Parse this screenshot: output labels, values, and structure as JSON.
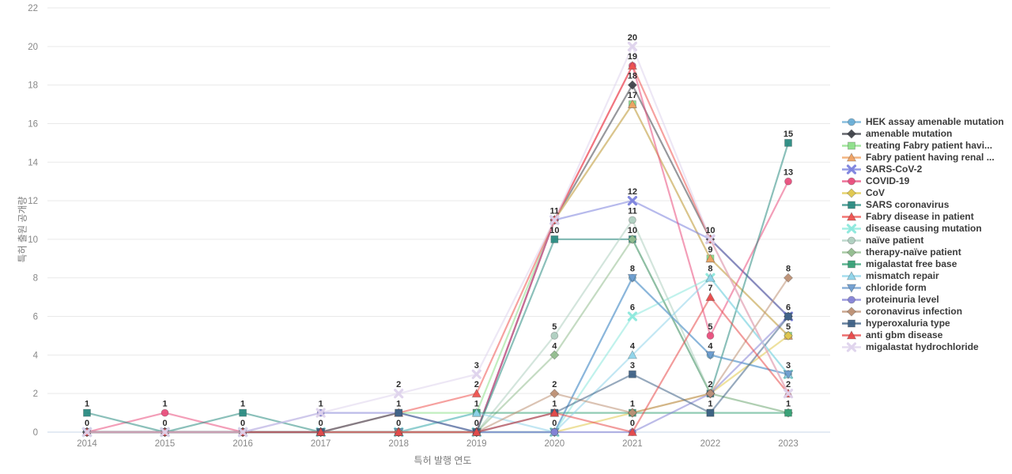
{
  "chart_data": {
    "type": "line",
    "title": "",
    "xlabel": "특허 발행 연도",
    "ylabel": "특허 출원 공개량",
    "x": [
      "2014",
      "2015",
      "2016",
      "2017",
      "2018",
      "2019",
      "2020",
      "2021",
      "2022",
      "2023"
    ],
    "ylim": [
      0,
      22
    ],
    "ytick_step": 2,
    "yticks": [
      0,
      2,
      4,
      6,
      8,
      10,
      12,
      14,
      16,
      18,
      20,
      22
    ],
    "grid": true,
    "legend_position": "right",
    "point_labels": true,
    "colors": {
      "grid": "#e9e9e9",
      "zero_line": "#c9d7e8",
      "tick_text": "#888888",
      "value_label": "#2b2b2b"
    },
    "series": [
      {
        "name": "HEK assay amenable mutation",
        "color": "#6aaed6",
        "marker": "circle",
        "values": [
          0,
          0,
          0,
          0,
          0,
          0,
          0,
          8,
          4,
          3
        ]
      },
      {
        "name": "amenable mutation",
        "color": "#41444b",
        "marker": "diamond",
        "values": [
          0,
          0,
          0,
          0,
          0,
          0,
          11,
          18,
          10,
          6
        ]
      },
      {
        "name": "treating Fabry patient havi...",
        "color": "#8ee08a",
        "marker": "square",
        "values": [
          0,
          0,
          0,
          0,
          1,
          1,
          11,
          17,
          9,
          5
        ]
      },
      {
        "name": "Fabry patient having renal ...",
        "color": "#f0a263",
        "marker": "triangle",
        "values": [
          0,
          0,
          0,
          0,
          0,
          0,
          11,
          17,
          9,
          5
        ]
      },
      {
        "name": "SARS-CoV-2",
        "color": "#7b82dd",
        "marker": "x",
        "values": [
          0,
          0,
          0,
          0,
          0,
          0,
          11,
          12,
          10,
          6
        ]
      },
      {
        "name": "COVID-19",
        "color": "#e94f7e",
        "marker": "circle",
        "values": [
          0,
          1,
          0,
          0,
          0,
          0,
          11,
          19,
          5,
          13
        ]
      },
      {
        "name": "CoV",
        "color": "#e0c84e",
        "marker": "diamond",
        "values": [
          0,
          0,
          0,
          0,
          0,
          0,
          0,
          1,
          2,
          5
        ]
      },
      {
        "name": "SARS coronavirus",
        "color": "#2b8c82",
        "marker": "square",
        "values": [
          1,
          0,
          1,
          0,
          0,
          0,
          10,
          10,
          2,
          15
        ]
      },
      {
        "name": "Fabry disease in patient",
        "color": "#ef5350",
        "marker": "triangle",
        "values": [
          0,
          0,
          0,
          0,
          1,
          2,
          11,
          19,
          10,
          2
        ]
      },
      {
        "name": "disease causing mutation",
        "color": "#8ce8dc",
        "marker": "x",
        "values": [
          0,
          0,
          0,
          0,
          0,
          0,
          0,
          6,
          8,
          3
        ]
      },
      {
        "name": "naïve patient",
        "color": "#afcfc0",
        "marker": "circle",
        "values": [
          0,
          0,
          0,
          0,
          0,
          0,
          5,
          11,
          2,
          1
        ]
      },
      {
        "name": "therapy-naïve patient",
        "color": "#93bd8f",
        "marker": "diamond",
        "values": [
          0,
          0,
          0,
          0,
          0,
          0,
          4,
          10,
          2,
          1
        ]
      },
      {
        "name": "migalastat free base",
        "color": "#37a177",
        "marker": "square",
        "values": [
          0,
          0,
          0,
          0,
          0,
          1,
          1,
          1,
          1,
          1
        ]
      },
      {
        "name": "mismatch repair",
        "color": "#8fd4ea",
        "marker": "triangle",
        "values": [
          0,
          0,
          0,
          0,
          0,
          1,
          0,
          4,
          8,
          3
        ]
      },
      {
        "name": "chloride form",
        "color": "#6f9ed0",
        "marker": "triangle-down",
        "values": [
          0,
          0,
          0,
          0,
          0,
          0,
          0,
          8,
          4,
          3
        ]
      },
      {
        "name": "proteinuria level",
        "color": "#8583d6",
        "marker": "circle",
        "values": [
          0,
          0,
          0,
          1,
          1,
          0,
          0,
          0,
          2,
          6
        ]
      },
      {
        "name": "coronavirus infection",
        "color": "#bd9175",
        "marker": "diamond",
        "values": [
          0,
          0,
          0,
          0,
          0,
          0,
          2,
          1,
          2,
          8
        ]
      },
      {
        "name": "hyperoxaluria type",
        "color": "#3f6286",
        "marker": "square",
        "values": [
          0,
          0,
          0,
          0,
          1,
          0,
          1,
          3,
          1,
          6
        ]
      },
      {
        "name": "anti gbm disease",
        "color": "#e84a4a",
        "marker": "triangle",
        "values": [
          0,
          0,
          0,
          0,
          0,
          0,
          1,
          0,
          7,
          2
        ]
      },
      {
        "name": "migalastat hydrochloride",
        "color": "#ded3ec",
        "marker": "x",
        "values": [
          0,
          0,
          0,
          1,
          2,
          3,
          11,
          20,
          10,
          2
        ]
      }
    ]
  },
  "axes": {
    "xlabel": "특허 발행 연도",
    "ylabel": "특허 출원 공개량"
  }
}
